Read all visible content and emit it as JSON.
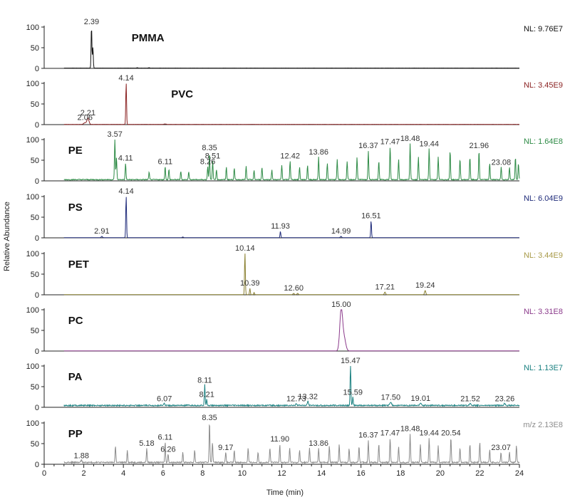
{
  "chart_data": {
    "type": "line",
    "title": "",
    "xlabel": "Time (min)",
    "ylabel": "Relative Abundance",
    "xlim": [
      0,
      24
    ],
    "x_ticks": [
      0,
      2,
      4,
      6,
      8,
      10,
      12,
      14,
      16,
      18,
      20,
      22,
      24
    ],
    "ylim": [
      0,
      100
    ],
    "y_ticks": [
      0,
      50,
      100
    ],
    "grid": false,
    "series": [
      {
        "name": "PMMA",
        "nl": "NL: 9.76E7",
        "color": "#111111",
        "nl_color": "#111111",
        "baseline": 0.6,
        "noise": 0.2,
        "peaks": [
          [
            2.39,
            100,
            0.02
          ],
          [
            2.46,
            50,
            0.02
          ],
          [
            4.7,
            1,
            0.03
          ],
          [
            5.3,
            1,
            0.03
          ]
        ],
        "labels": [
          {
            "x": 2.39,
            "text": "2.39"
          }
        ],
        "badge_x": 4.2
      },
      {
        "name": "PVC",
        "nl": "NL: 3.45E9",
        "color": "#8b2323",
        "nl_color": "#8b2323",
        "baseline": 0.5,
        "noise": 0.2,
        "peaks": [
          [
            2.06,
            4,
            0.06
          ],
          [
            2.21,
            15,
            0.05
          ],
          [
            4.14,
            100,
            0.02
          ],
          [
            6.1,
            1,
            0.05
          ]
        ],
        "labels": [
          {
            "x": 2.06,
            "text": "2.06"
          },
          {
            "x": 2.21,
            "text": "2.21"
          },
          {
            "x": 4.14,
            "text": "4.14"
          }
        ],
        "badge_x": 6.2
      },
      {
        "name": "PE",
        "nl": "NL: 1.64E8",
        "color": "#2e8b46",
        "nl_color": "#2e8b46",
        "baseline": 2,
        "noise": 2,
        "peaks": [
          [
            3.57,
            100,
            0.02
          ],
          [
            3.65,
            55,
            0.02
          ],
          [
            4.11,
            40,
            0.02
          ],
          [
            5.3,
            18,
            0.02
          ],
          [
            6.11,
            32,
            0.02
          ],
          [
            6.3,
            25,
            0.02
          ],
          [
            6.9,
            20,
            0.02
          ],
          [
            7.3,
            20,
            0.02
          ],
          [
            8.26,
            32,
            0.02
          ],
          [
            8.35,
            65,
            0.02
          ],
          [
            8.51,
            45,
            0.02
          ],
          [
            8.7,
            25,
            0.02
          ],
          [
            9.2,
            30,
            0.02
          ],
          [
            9.6,
            28,
            0.02
          ],
          [
            10.2,
            32,
            0.02
          ],
          [
            10.6,
            22,
            0.02
          ],
          [
            11.0,
            30,
            0.02
          ],
          [
            11.5,
            24,
            0.02
          ],
          [
            12.0,
            35,
            0.02
          ],
          [
            12.42,
            45,
            0.02
          ],
          [
            12.9,
            30,
            0.02
          ],
          [
            13.3,
            35,
            0.02
          ],
          [
            13.86,
            55,
            0.02
          ],
          [
            14.3,
            40,
            0.02
          ],
          [
            14.8,
            50,
            0.02
          ],
          [
            15.3,
            45,
            0.02
          ],
          [
            15.8,
            55,
            0.02
          ],
          [
            16.37,
            70,
            0.02
          ],
          [
            16.9,
            45,
            0.02
          ],
          [
            17.47,
            80,
            0.02
          ],
          [
            17.9,
            50,
            0.02
          ],
          [
            18.48,
            88,
            0.02
          ],
          [
            18.9,
            55,
            0.02
          ],
          [
            19.44,
            75,
            0.02
          ],
          [
            19.9,
            55,
            0.02
          ],
          [
            20.5,
            70,
            0.02
          ],
          [
            21.0,
            50,
            0.02
          ],
          [
            21.5,
            55,
            0.02
          ],
          [
            21.96,
            70,
            0.02
          ],
          [
            22.5,
            40,
            0.02
          ],
          [
            23.08,
            30,
            0.02
          ],
          [
            23.5,
            30,
            0.02
          ],
          [
            23.8,
            55,
            0.02
          ],
          [
            23.95,
            40,
            0.02
          ]
        ],
        "labels": [
          {
            "x": 3.57,
            "text": "3.57"
          },
          {
            "x": 4.11,
            "text": "4.11"
          },
          {
            "x": 6.11,
            "text": "6.11"
          },
          {
            "x": 8.26,
            "text": "8.26"
          },
          {
            "x": 8.35,
            "text": "8.35"
          },
          {
            "x": 8.51,
            "text": "8.51"
          },
          {
            "x": 12.42,
            "text": "12.42"
          },
          {
            "x": 13.86,
            "text": "13.86"
          },
          {
            "x": 16.37,
            "text": "16.37"
          },
          {
            "x": 17.47,
            "text": "17.47"
          },
          {
            "x": 18.48,
            "text": "18.48"
          },
          {
            "x": 19.44,
            "text": "19.44"
          },
          {
            "x": 21.96,
            "text": "21.96"
          },
          {
            "x": 23.08,
            "text": "23.08"
          }
        ],
        "badge_x": 1.0
      },
      {
        "name": "PS",
        "nl": "NL: 6.04E9",
        "color": "#1f2b7a",
        "nl_color": "#1f2b7a",
        "baseline": 0.4,
        "noise": 0.2,
        "peaks": [
          [
            2.91,
            3,
            0.03
          ],
          [
            4.14,
            100,
            0.02
          ],
          [
            7.0,
            1.5,
            0.03
          ],
          [
            11.93,
            15,
            0.02
          ],
          [
            14.99,
            3,
            0.03
          ],
          [
            16.51,
            40,
            0.02
          ]
        ],
        "labels": [
          {
            "x": 2.91,
            "text": "2.91"
          },
          {
            "x": 4.14,
            "text": "4.14"
          },
          {
            "x": 11.93,
            "text": "11.93"
          },
          {
            "x": 14.99,
            "text": "14.99"
          },
          {
            "x": 16.51,
            "text": "16.51"
          }
        ],
        "badge_x": 1.0
      },
      {
        "name": "PET",
        "nl": "NL: 3.44E9",
        "color": "#8a8030",
        "nl_color": "#a89a48",
        "baseline": 0.4,
        "noise": 0.2,
        "peaks": [
          [
            10.14,
            100,
            0.02
          ],
          [
            10.39,
            15,
            0.02
          ],
          [
            10.6,
            5,
            0.02
          ],
          [
            12.6,
            3,
            0.03
          ],
          [
            12.8,
            3,
            0.03
          ],
          [
            17.21,
            6,
            0.03
          ],
          [
            19.24,
            10,
            0.03
          ]
        ],
        "labels": [
          {
            "x": 10.14,
            "text": "10.14"
          },
          {
            "x": 10.39,
            "text": "10.39"
          },
          {
            "x": 12.6,
            "text": "12.60"
          },
          {
            "x": 17.21,
            "text": "17.21"
          },
          {
            "x": 19.24,
            "text": "19.24"
          }
        ],
        "badge_x": 1.0
      },
      {
        "name": "PC",
        "nl": "NL: 3.31E8",
        "color": "#8b3a8b",
        "nl_color": "#8b3a8b",
        "baseline": 0.3,
        "noise": 0.1,
        "peaks": [
          [
            15.0,
            100,
            0.07
          ],
          [
            15.15,
            30,
            0.08
          ]
        ],
        "labels": [
          {
            "x": 15.0,
            "text": "15.00"
          }
        ],
        "badge_x": 1.0
      },
      {
        "name": "PA",
        "nl": "NL: 1.13E7",
        "color": "#1a8080",
        "nl_color": "#1a8080",
        "baseline": 3,
        "noise": 3,
        "peaks": [
          [
            6.07,
            5,
            0.03
          ],
          [
            8.11,
            50,
            0.02
          ],
          [
            8.21,
            15,
            0.02
          ],
          [
            12.73,
            5,
            0.03
          ],
          [
            13.32,
            10,
            0.03
          ],
          [
            15.47,
            100,
            0.02
          ],
          [
            15.59,
            20,
            0.02
          ],
          [
            17.5,
            8,
            0.04
          ],
          [
            19.01,
            6,
            0.04
          ],
          [
            21.52,
            5,
            0.04
          ],
          [
            23.26,
            5,
            0.04
          ]
        ],
        "labels": [
          {
            "x": 6.07,
            "text": "6.07"
          },
          {
            "x": 8.11,
            "text": "8.11"
          },
          {
            "x": 8.21,
            "text": "8.21"
          },
          {
            "x": 12.73,
            "text": "12.73"
          },
          {
            "x": 13.32,
            "text": "13.32"
          },
          {
            "x": 15.47,
            "text": "15.47"
          },
          {
            "x": 15.59,
            "text": "15.59"
          },
          {
            "x": 17.5,
            "text": "17.50"
          },
          {
            "x": 19.01,
            "text": "19.01"
          },
          {
            "x": 21.52,
            "text": "21.52"
          },
          {
            "x": 23.26,
            "text": "23.26"
          }
        ],
        "badge_x": 1.0
      },
      {
        "name": "PP",
        "nl": "m/z 2.13E8",
        "color": "#8c8c8c",
        "nl_color": "#8c8c8c",
        "baseline": 3,
        "noise": 3,
        "peaks": [
          [
            1.88,
            5,
            0.03
          ],
          [
            3.6,
            40,
            0.02
          ],
          [
            4.2,
            30,
            0.02
          ],
          [
            5.18,
            35,
            0.02
          ],
          [
            6.11,
            50,
            0.02
          ],
          [
            6.26,
            20,
            0.02
          ],
          [
            7.0,
            25,
            0.02
          ],
          [
            7.6,
            30,
            0.02
          ],
          [
            8.35,
            100,
            0.02
          ],
          [
            8.5,
            50,
            0.02
          ],
          [
            9.17,
            25,
            0.02
          ],
          [
            9.6,
            30,
            0.02
          ],
          [
            10.3,
            35,
            0.02
          ],
          [
            10.8,
            25,
            0.02
          ],
          [
            11.4,
            35,
            0.02
          ],
          [
            11.9,
            45,
            0.02
          ],
          [
            12.4,
            35,
            0.02
          ],
          [
            12.9,
            30,
            0.02
          ],
          [
            13.4,
            35,
            0.02
          ],
          [
            13.86,
            35,
            0.02
          ],
          [
            14.4,
            40,
            0.02
          ],
          [
            14.9,
            45,
            0.02
          ],
          [
            15.4,
            35,
            0.02
          ],
          [
            15.9,
            40,
            0.02
          ],
          [
            16.37,
            55,
            0.02
          ],
          [
            16.9,
            45,
            0.02
          ],
          [
            17.47,
            60,
            0.02
          ],
          [
            17.9,
            40,
            0.02
          ],
          [
            18.48,
            70,
            0.02
          ],
          [
            19.0,
            45,
            0.02
          ],
          [
            19.44,
            60,
            0.02
          ],
          [
            19.9,
            40,
            0.02
          ],
          [
            20.54,
            60,
            0.02
          ],
          [
            21.0,
            35,
            0.02
          ],
          [
            21.5,
            45,
            0.02
          ],
          [
            22.0,
            50,
            0.02
          ],
          [
            22.5,
            30,
            0.02
          ],
          [
            23.07,
            25,
            0.02
          ],
          [
            23.5,
            25,
            0.02
          ],
          [
            23.85,
            40,
            0.02
          ]
        ],
        "labels": [
          {
            "x": 1.88,
            "text": "1.88"
          },
          {
            "x": 5.18,
            "text": "5.18"
          },
          {
            "x": 6.11,
            "text": "6.11"
          },
          {
            "x": 6.26,
            "text": "6.26"
          },
          {
            "x": 8.35,
            "text": "8.35"
          },
          {
            "x": 9.17,
            "text": "9.17"
          },
          {
            "x": 11.9,
            "text": "11.90"
          },
          {
            "x": 13.86,
            "text": "13.86"
          },
          {
            "x": 16.37,
            "text": "16.37"
          },
          {
            "x": 17.47,
            "text": "17.47"
          },
          {
            "x": 18.48,
            "text": "18.48"
          },
          {
            "x": 19.44,
            "text": "19.44"
          },
          {
            "x": 20.54,
            "text": "20.54"
          },
          {
            "x": 23.07,
            "text": "23.07"
          }
        ],
        "badge_x": 1.0
      }
    ]
  }
}
